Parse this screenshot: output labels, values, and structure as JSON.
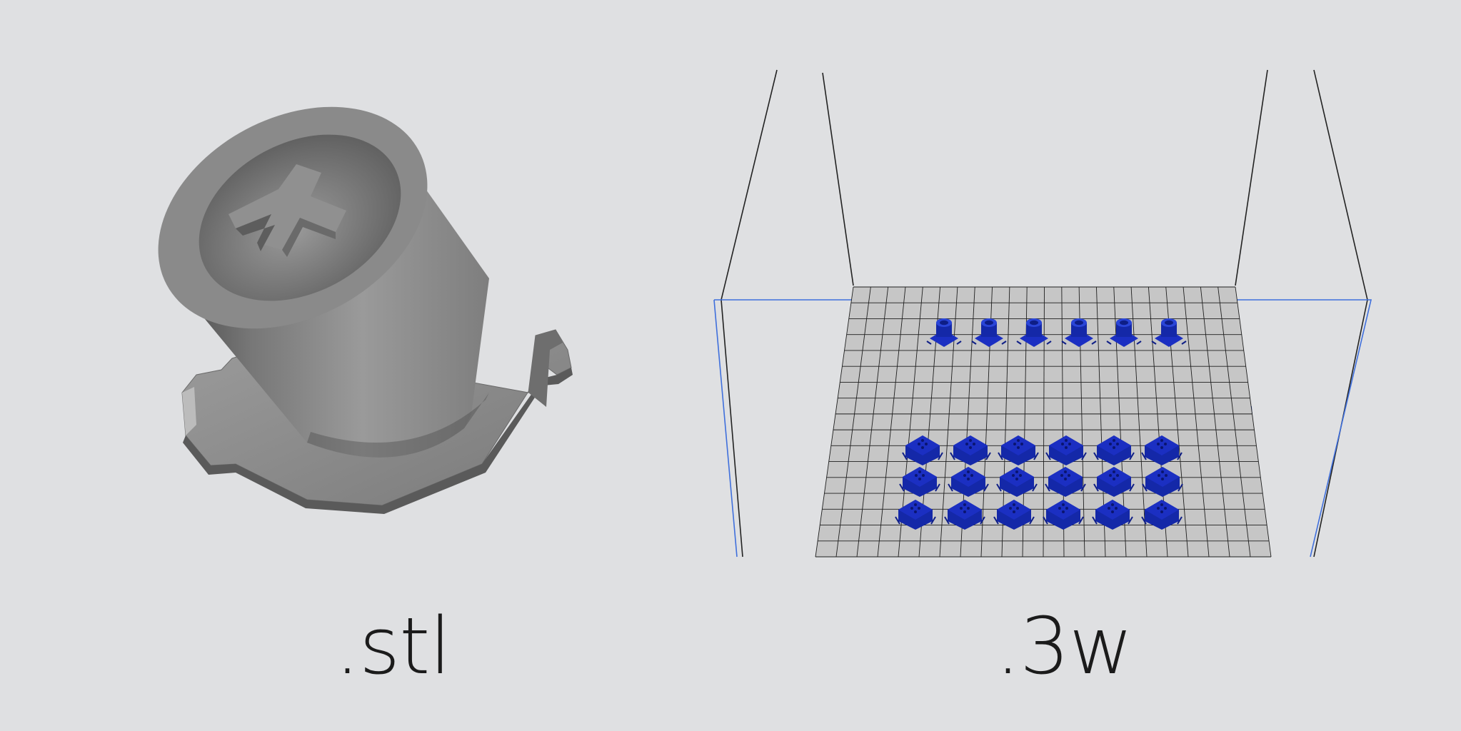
{
  "left": {
    "caption": ".stl",
    "model_color": "#8e8e8e"
  },
  "right": {
    "caption": ".3w",
    "bed_color": "#c6c6c6",
    "grid_color": "#1e1e1e",
    "frame_line_color": "#222222",
    "accent_line_color": "#3f6fdc",
    "part_color": "#1b2fc2",
    "part_rows": [
      {
        "kind": "small-part",
        "count": 6
      },
      {
        "kind": "large-part",
        "count": 6
      },
      {
        "kind": "large-part",
        "count": 6
      },
      {
        "kind": "large-part",
        "count": 6
      }
    ]
  }
}
